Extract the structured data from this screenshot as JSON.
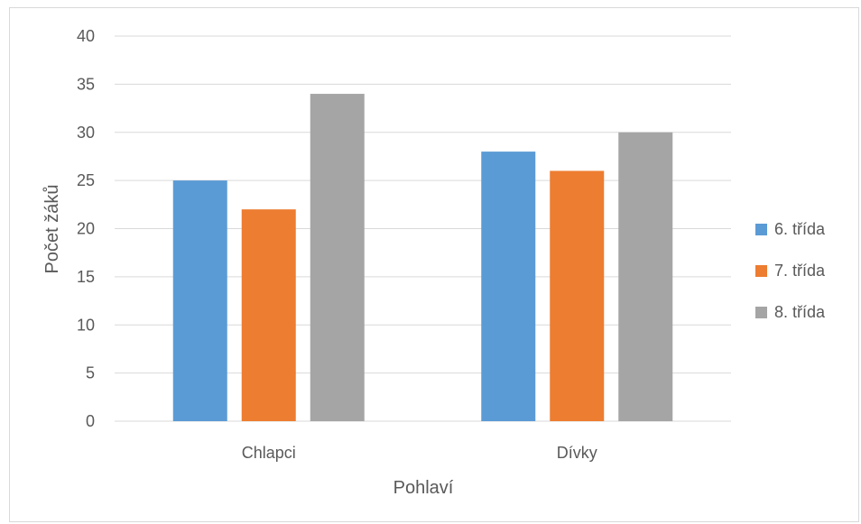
{
  "chart_data": {
    "type": "bar",
    "categories": [
      "Chlapci",
      "Dívky"
    ],
    "series": [
      {
        "name": "6. třída",
        "color": "#5b9bd5",
        "values": [
          25,
          28
        ]
      },
      {
        "name": "7. třída",
        "color": "#ed7d31",
        "values": [
          22,
          26
        ]
      },
      {
        "name": "8. třída",
        "color": "#a5a5a5",
        "values": [
          34,
          30
        ]
      }
    ],
    "xlabel": "Pohlaví",
    "ylabel": "Počet žáků",
    "ylim": [
      0,
      40
    ],
    "yticks": [
      0,
      5,
      10,
      15,
      20,
      25,
      30,
      35,
      40
    ],
    "grid": true,
    "legend_position": "right"
  }
}
